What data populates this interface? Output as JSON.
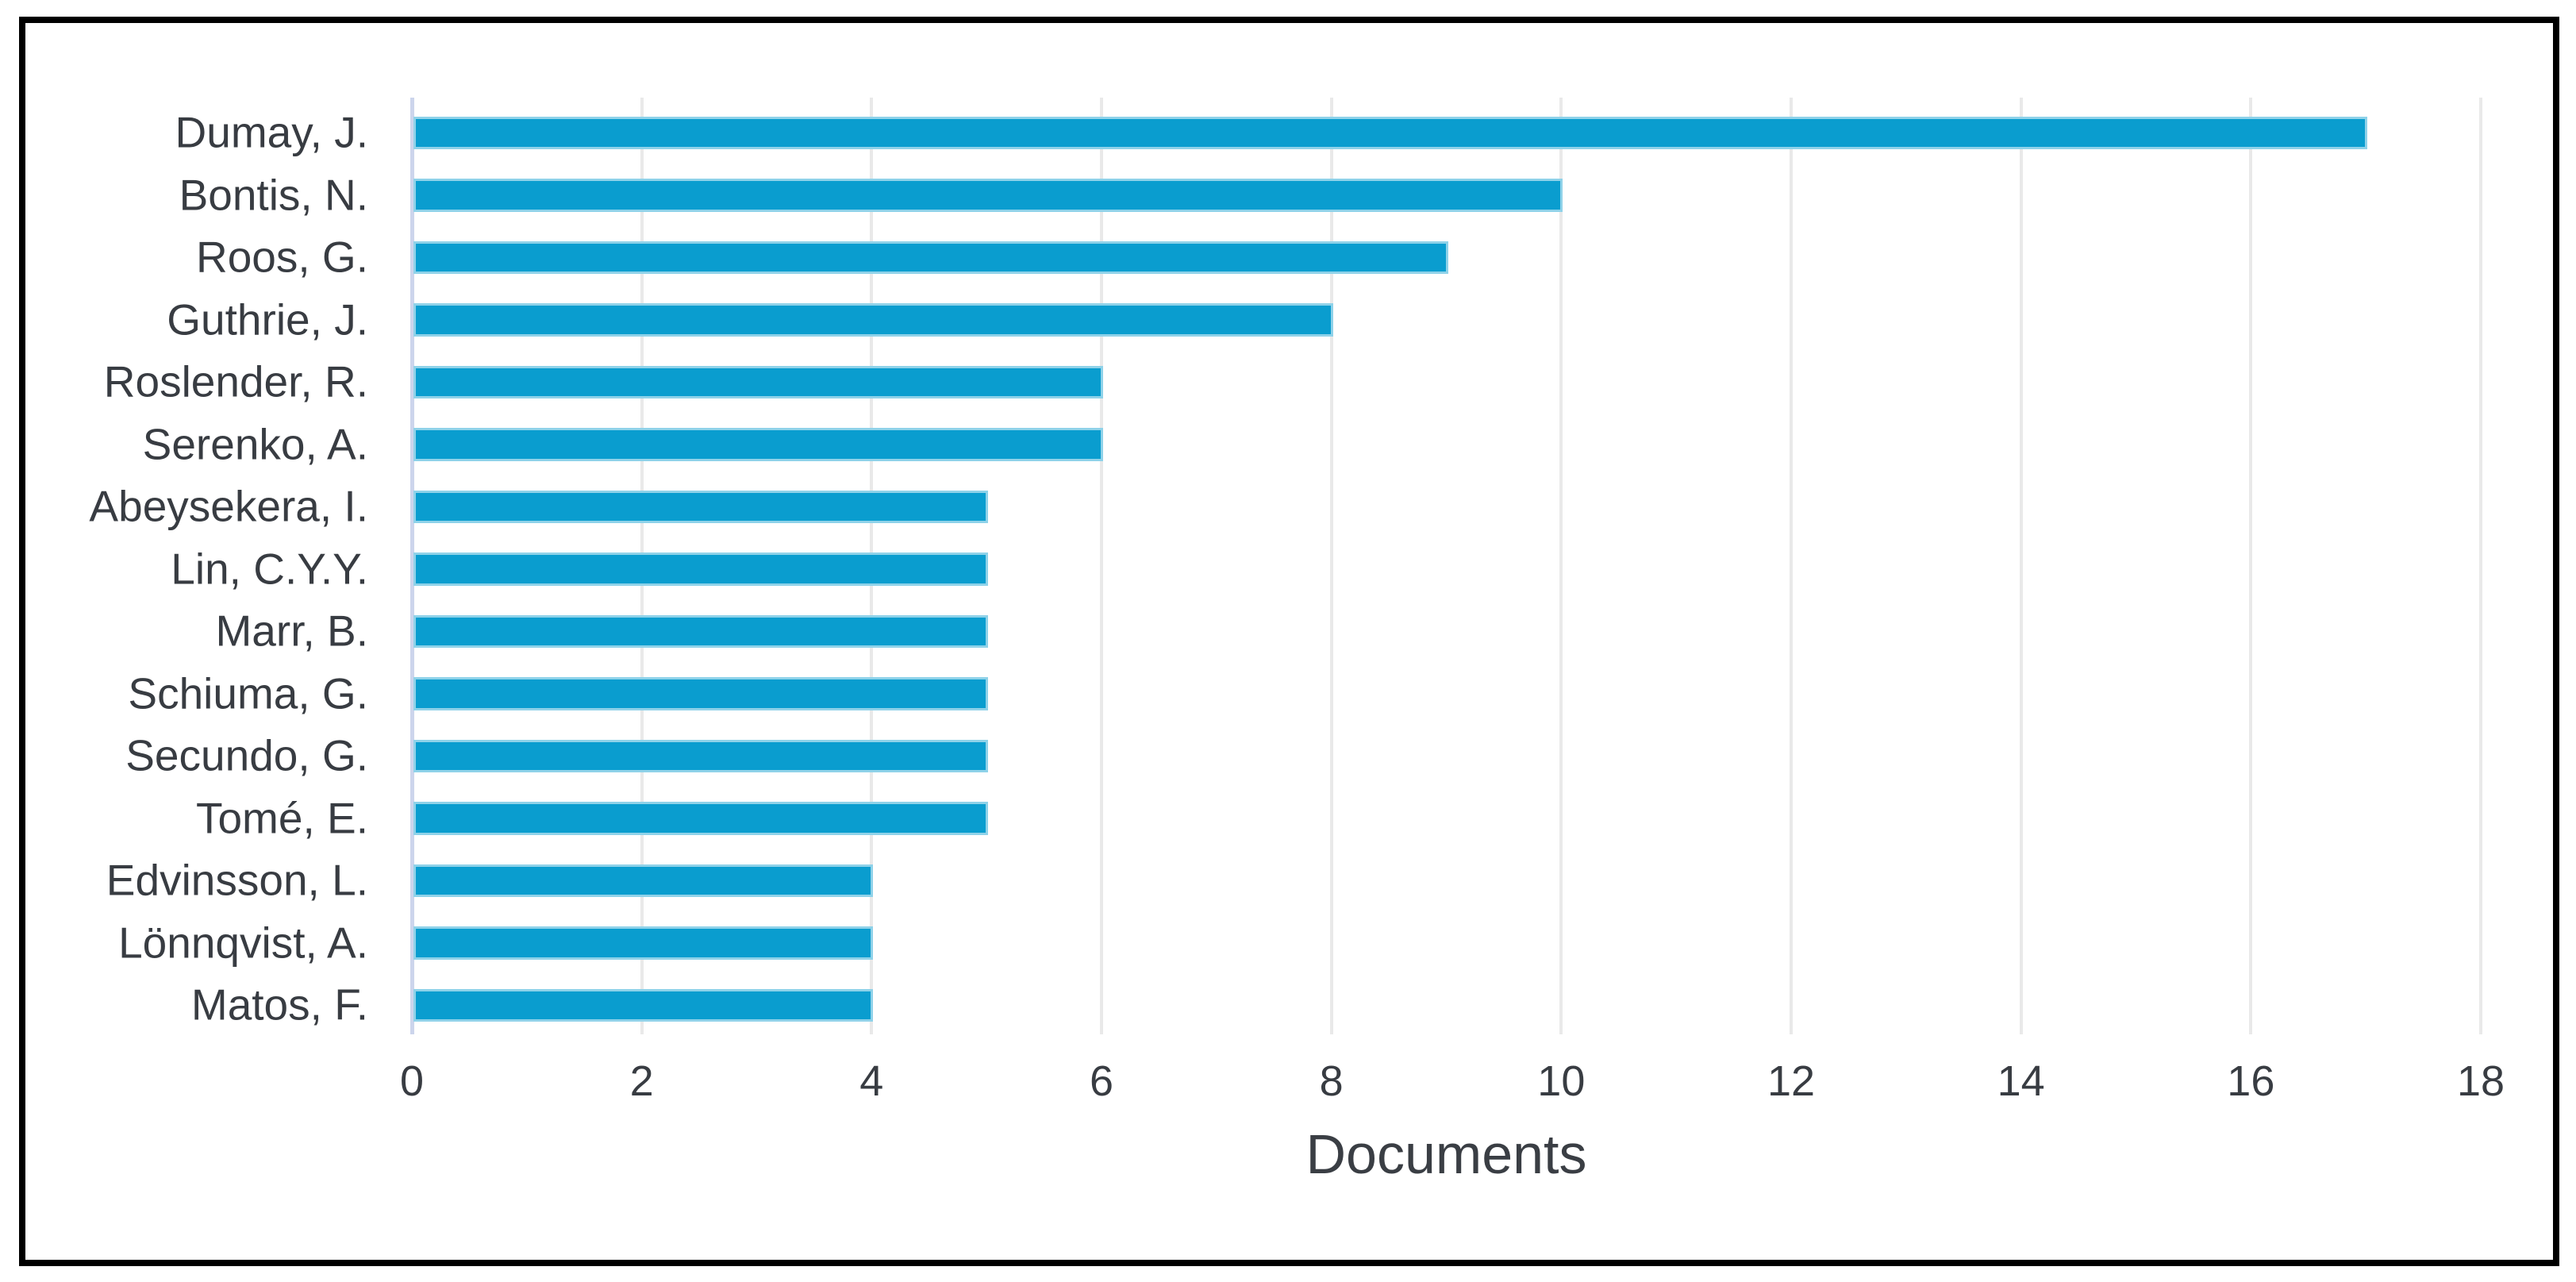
{
  "figure": {
    "background": "#ffffff",
    "border_color": "#000000"
  },
  "chart_data": {
    "type": "bar",
    "orientation": "horizontal",
    "title": "",
    "xlabel": "Documents",
    "ylabel": "",
    "categories": [
      "Dumay, J.",
      "Bontis, N.",
      "Roos, G.",
      "Guthrie, J.",
      "Roslender, R.",
      "Serenko, A.",
      "Abeysekera, I.",
      "Lin, C.Y.Y.",
      "Marr, B.",
      "Schiuma, G.",
      "Secundo, G.",
      "Tomé, E.",
      "Edvinsson, L.",
      "Lönnqvist, A.",
      "Matos, F."
    ],
    "values": [
      17,
      10,
      9,
      8,
      6,
      6,
      5,
      5,
      5,
      5,
      5,
      5,
      4,
      4,
      4
    ],
    "xlim": [
      0,
      18
    ],
    "xticks": [
      0,
      2,
      4,
      6,
      8,
      10,
      12,
      14,
      16,
      18
    ],
    "grid": "vertical-only",
    "legend": "none",
    "colors": {
      "bar_fill": "#0a9dcf",
      "bar_edge": "#8fd2e9",
      "axis_line": "#ccd5ec",
      "gridline": "#e9e9e9",
      "category_text": "#383c42",
      "tick_text": "#383c42",
      "axis_title_text": "#3a3e44"
    }
  }
}
